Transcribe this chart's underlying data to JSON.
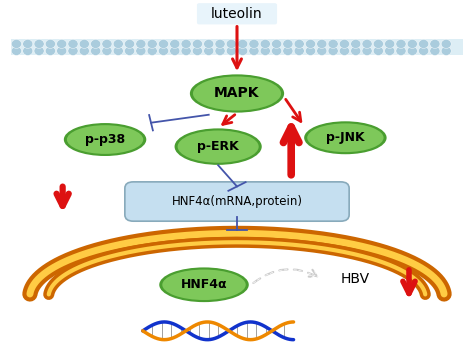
{
  "bg_color": "#ffffff",
  "membrane_color": "#ddeef5",
  "membrane_outline": "#aaccdd",
  "dot_color": "#aaccdd",
  "green_light": "#7ec85a",
  "green_dark": "#4a9e30",
  "hnf4a_box_color": "#c5dff0",
  "hnf4a_box_edge": "#88aabb",
  "red_color": "#dd1111",
  "blue_color": "#4455aa",
  "dna_blue": "#1133cc",
  "dna_orange": "#ee8800",
  "nuc_orange_dark": "#cc6600",
  "nuc_orange_light": "#ffcc44",
  "luteolin_label": "luteolin",
  "mapk_label": "MAPK",
  "pp38_label": "p-p38",
  "perk_label": "p-ERK",
  "pjnk_label": "p-JNK",
  "hnf4a_mrna_label": "HNF4α(mRNA,protein)",
  "hnf4a_label": "HNF4α",
  "hbv_label": "HBV",
  "fig_w": 4.74,
  "fig_h": 3.57,
  "dpi": 100
}
